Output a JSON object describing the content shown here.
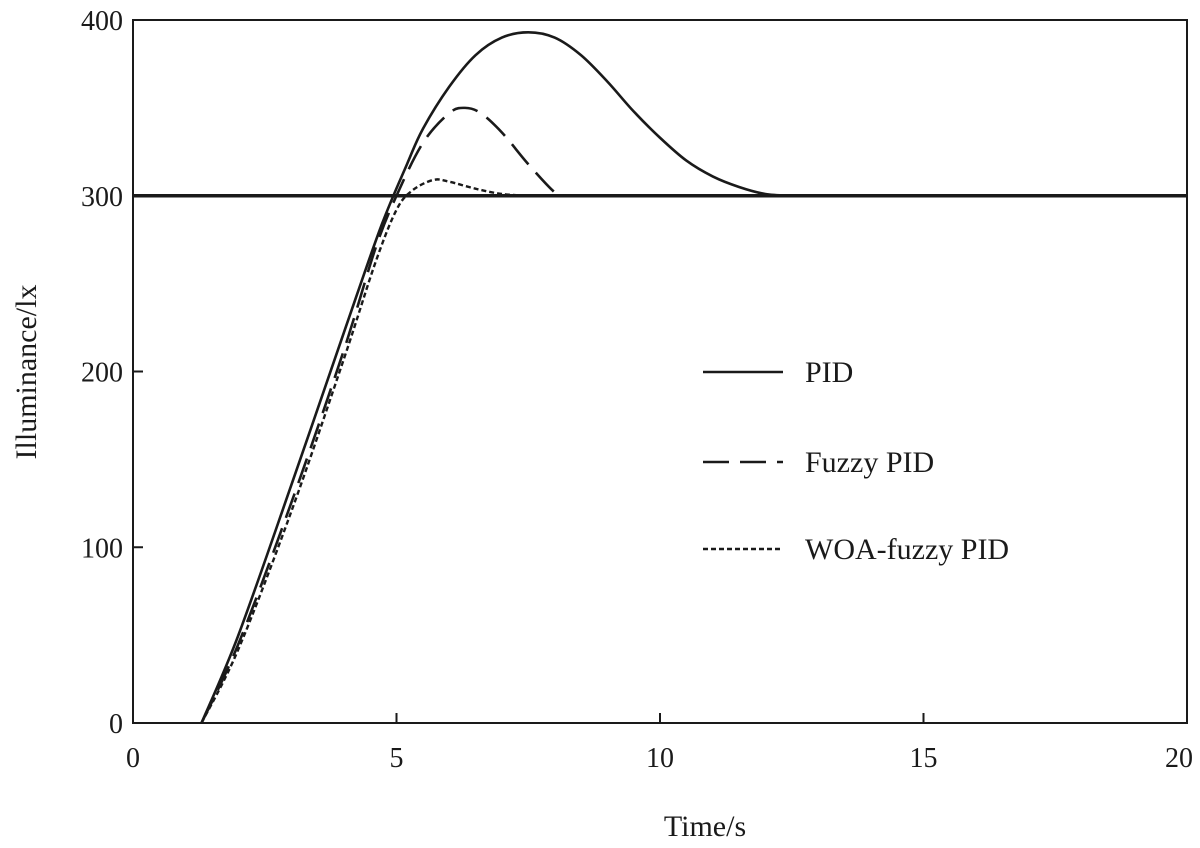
{
  "chart_data": {
    "type": "line",
    "title": "",
    "xlabel": "Time/s",
    "ylabel": "Illuminance/lx",
    "xlim": [
      0,
      20
    ],
    "ylim": [
      0,
      400
    ],
    "xticks": [
      0,
      5,
      10,
      15,
      20
    ],
    "yticks": [
      0,
      100,
      200,
      300,
      400
    ],
    "grid": false,
    "legend_position": "right",
    "reference_line": {
      "y": 300
    },
    "series": [
      {
        "name": "PID",
        "style": "solid",
        "color": "#1a1a1a",
        "points": [
          [
            1.3,
            0
          ],
          [
            2,
            50
          ],
          [
            3,
            135
          ],
          [
            4,
            222
          ],
          [
            4.7,
            282
          ],
          [
            5.2,
            318
          ],
          [
            5.5,
            338
          ],
          [
            6,
            362
          ],
          [
            6.5,
            380
          ],
          [
            7,
            390
          ],
          [
            7.5,
            393
          ],
          [
            8,
            390
          ],
          [
            8.5,
            380
          ],
          [
            9,
            365
          ],
          [
            9.5,
            348
          ],
          [
            10,
            333
          ],
          [
            10.5,
            320
          ],
          [
            11,
            311
          ],
          [
            11.5,
            305
          ],
          [
            12,
            301
          ],
          [
            12.5,
            300
          ]
        ]
      },
      {
        "name": "Fuzzy PID",
        "style": "dashed",
        "color": "#1a1a1a",
        "points": [
          [
            1.3,
            0
          ],
          [
            2,
            45
          ],
          [
            3,
            125
          ],
          [
            4,
            212
          ],
          [
            4.6,
            270
          ],
          [
            5,
            300
          ],
          [
            5.5,
            330
          ],
          [
            6,
            347
          ],
          [
            6.3,
            350
          ],
          [
            6.6,
            347
          ],
          [
            7,
            336
          ],
          [
            7.5,
            318
          ],
          [
            8,
            302
          ],
          [
            8.2,
            300
          ]
        ]
      },
      {
        "name": "WOA-fuzzy PID",
        "style": "dotted",
        "color": "#1a1a1a",
        "points": [
          [
            1.3,
            0
          ],
          [
            2,
            42
          ],
          [
            3,
            120
          ],
          [
            4,
            207
          ],
          [
            4.6,
            262
          ],
          [
            5,
            292
          ],
          [
            5.3,
            303
          ],
          [
            5.7,
            309
          ],
          [
            6,
            308
          ],
          [
            6.5,
            304
          ],
          [
            7,
            301
          ],
          [
            7.5,
            300
          ]
        ]
      }
    ]
  }
}
